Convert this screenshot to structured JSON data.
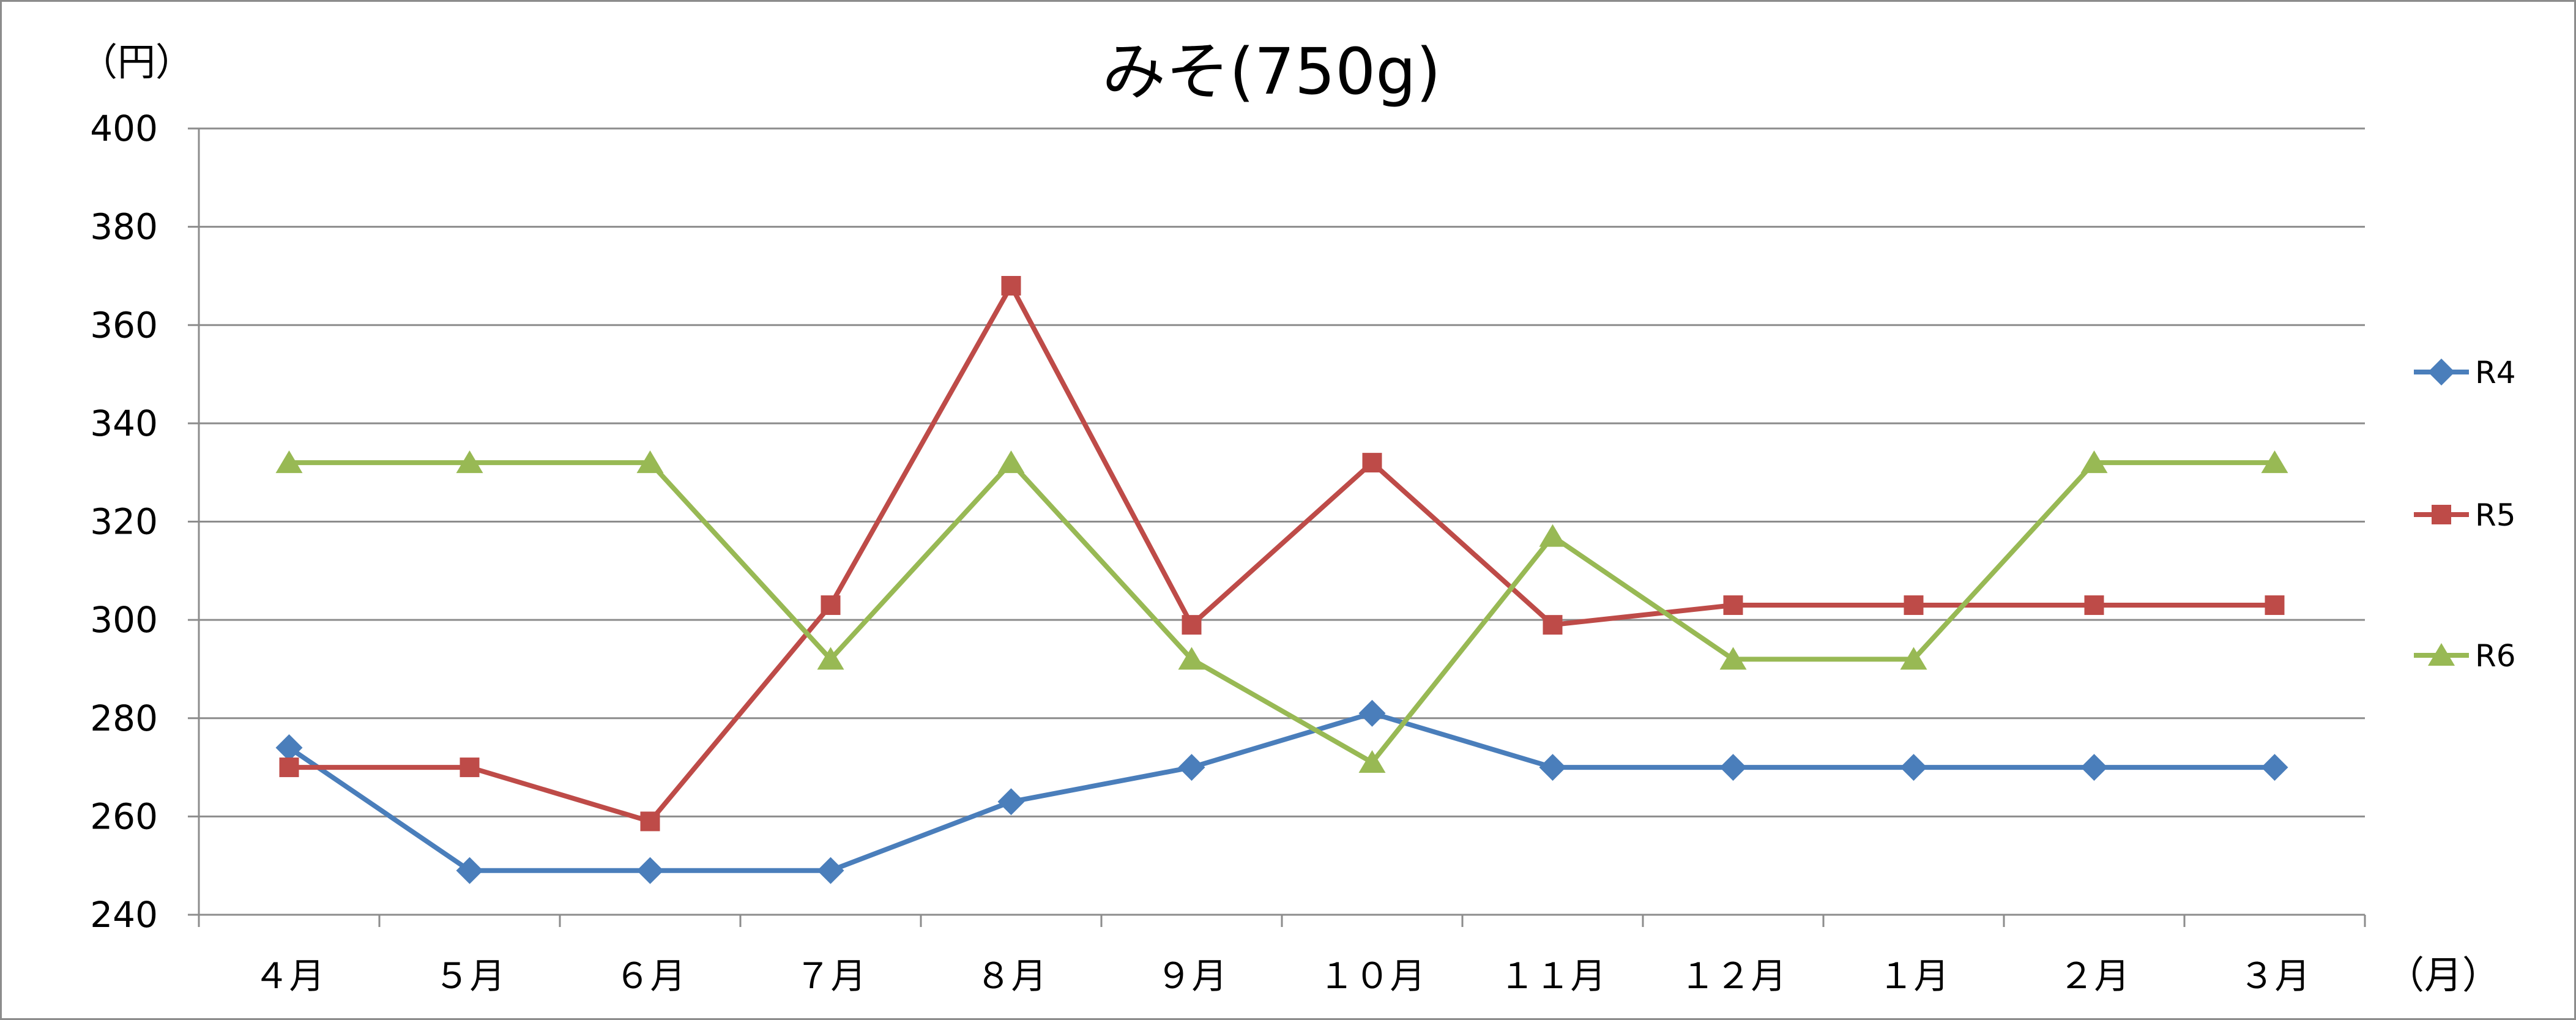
{
  "chart_data": {
    "type": "line",
    "title": "みそ(750g)",
    "y_unit": "（円）",
    "x_unit": "（月）",
    "categories": [
      "４月",
      "５月",
      "６月",
      "７月",
      "８月",
      "９月",
      "１０月",
      "１１月",
      "１２月",
      "１月",
      "２月",
      "３月"
    ],
    "ylim": [
      240,
      400
    ],
    "yticks": [
      "400",
      "380",
      "360",
      "340",
      "320",
      "300",
      "280",
      "260",
      "240"
    ],
    "grid": true,
    "legend_position": "right",
    "series": [
      {
        "name": "R4",
        "color": "#4a7ebb",
        "marker": "diamond",
        "values": [
          274,
          249,
          249,
          249,
          263,
          270,
          281,
          270,
          270,
          270,
          270,
          270
        ]
      },
      {
        "name": "R5",
        "color": "#be4b48",
        "marker": "square",
        "values": [
          270,
          270,
          259,
          303,
          368,
          299,
          332,
          299,
          303,
          303,
          303,
          303
        ]
      },
      {
        "name": "R6",
        "color": "#98b954",
        "marker": "triangle",
        "values": [
          332,
          332,
          332,
          292,
          332,
          292,
          271,
          317,
          292,
          292,
          332,
          332
        ]
      }
    ]
  }
}
